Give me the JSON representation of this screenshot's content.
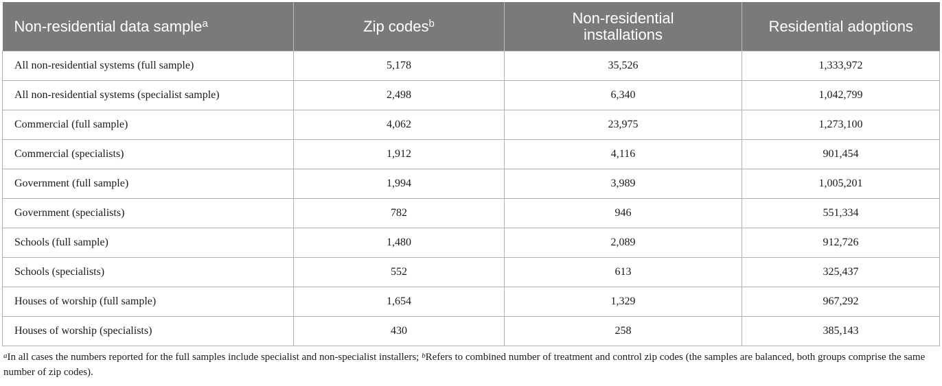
{
  "table": {
    "headers": [
      {
        "label": "Non-residential data sample",
        "sup": "a"
      },
      {
        "label": "Zip codes",
        "sup": "b"
      },
      {
        "label": "Non-residential installations",
        "sup": ""
      },
      {
        "label": "Residential adoptions",
        "sup": ""
      }
    ],
    "header_line2": "installations",
    "header_line1": "Non-residential",
    "rows": [
      [
        "All non-residential systems (full sample)",
        "5,178",
        "35,526",
        "1,333,972"
      ],
      [
        "All non-residential systems (specialist sample)",
        "2,498",
        "6,340",
        "1,042,799"
      ],
      [
        "Commercial (full sample)",
        "4,062",
        "23,975",
        "1,273,100"
      ],
      [
        "Commercial (specialists)",
        "1,912",
        "4,116",
        "901,454"
      ],
      [
        "Government (full sample)",
        "1,994",
        "3,989",
        "1,005,201"
      ],
      [
        "Government (specialists)",
        "782",
        "946",
        "551,334"
      ],
      [
        "Schools (full sample)",
        "1,480",
        "2,089",
        "912,726"
      ],
      [
        "Schools (specialists)",
        "552",
        "613",
        "325,437"
      ],
      [
        "Houses of worship (full sample)",
        "1,654",
        "1,329",
        "967,292"
      ],
      [
        "Houses of worship (specialists)",
        "430",
        "258",
        "385,143"
      ]
    ]
  },
  "footnote": {
    "a_marker": "a",
    "a_text": "In all cases the numbers reported for the full samples include specialist and non-specialist installers; ",
    "b_marker": "b",
    "b_text": "Refers to combined number of treatment and control zip codes (the samples are balanced, both groups comprise the same number of zip codes)."
  },
  "colors": {
    "header_bg": "#7a7a7a",
    "header_text": "#ffffff",
    "grid": "#b0b0b0"
  }
}
